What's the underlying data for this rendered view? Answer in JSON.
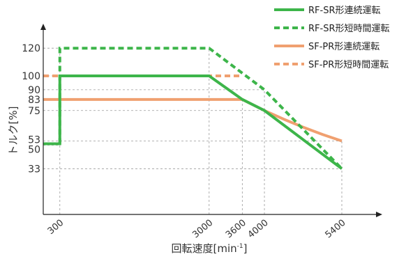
{
  "chart_data": {
    "type": "line",
    "xlabel": "回転速度[min",
    "xlabel_superscript": "-1",
    "xlabel_suffix": "]",
    "ylabel": "トルク[%]",
    "xlim": [
      0,
      6100
    ],
    "ylim": [
      0,
      135
    ],
    "x_ticks": [
      300,
      3000,
      3600,
      4000,
      5400
    ],
    "y_ticks": [
      33,
      50,
      53,
      75,
      83,
      90,
      100,
      120
    ],
    "grid": "dashed reference lines at tick values",
    "legend_position": "top-right",
    "series": [
      {
        "name": "RF-SR形連続運転",
        "color": "#3db54a",
        "style": "solid",
        "points": [
          [
            0,
            51
          ],
          [
            300,
            51
          ],
          [
            300,
            100
          ],
          [
            3000,
            100
          ],
          [
            3600,
            83
          ],
          [
            4000,
            75
          ],
          [
            5400,
            33
          ]
        ]
      },
      {
        "name": "RF-SR形短時間運転",
        "color": "#3db54a",
        "style": "dashed",
        "points": [
          [
            300,
            51
          ],
          [
            300,
            120
          ],
          [
            3000,
            120
          ],
          [
            4000,
            90
          ],
          [
            5400,
            33
          ]
        ]
      },
      {
        "name": "SF-PR形連続運転",
        "color": "#f0a070",
        "style": "solid",
        "points": [
          [
            0,
            83
          ],
          [
            3600,
            83
          ],
          [
            4000,
            75
          ],
          [
            4700,
            63
          ],
          [
            5400,
            53
          ]
        ]
      },
      {
        "name": "SF-PR形短時間運転",
        "color": "#f0a070",
        "style": "dashed",
        "points": [
          [
            0,
            100
          ],
          [
            3600,
            100
          ]
        ]
      }
    ]
  }
}
